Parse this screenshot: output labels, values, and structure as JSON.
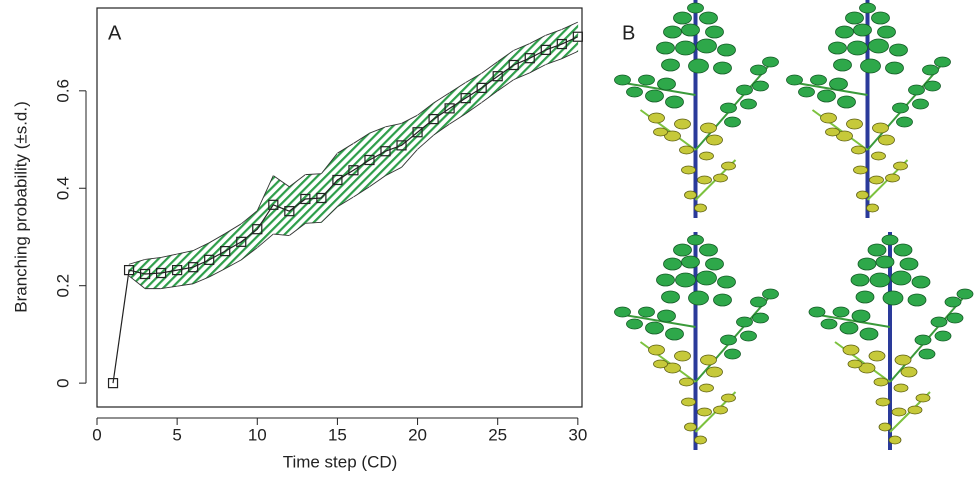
{
  "chart_data": {
    "type": "line",
    "panel_label": "A",
    "xlabel": "Time step (CD)",
    "ylabel": "Branching probability (±s.d.)",
    "x": [
      1,
      2,
      3,
      4,
      5,
      6,
      7,
      8,
      9,
      10,
      11,
      12,
      13,
      14,
      15,
      16,
      17,
      18,
      19,
      20,
      21,
      22,
      23,
      24,
      25,
      26,
      27,
      28,
      29,
      30
    ],
    "values": [
      0,
      0.232,
      0.224,
      0.226,
      0.232,
      0.238,
      0.253,
      0.271,
      0.29,
      0.316,
      0.366,
      0.353,
      0.378,
      0.38,
      0.417,
      0.437,
      0.458,
      0.476,
      0.488,
      0.515,
      0.542,
      0.564,
      0.585,
      0.606,
      0.63,
      0.653,
      0.667,
      0.684,
      0.696,
      0.711
    ],
    "sd": [
      null,
      0.012,
      0.03,
      0.032,
      0.033,
      0.034,
      0.035,
      0.036,
      0.037,
      0.038,
      0.06,
      0.05,
      0.05,
      0.05,
      0.055,
      0.055,
      0.055,
      0.05,
      0.045,
      0.035,
      0.033,
      0.032,
      0.032,
      0.03,
      0.03,
      0.03,
      0.03,
      0.03,
      0.03,
      0.03
    ],
    "color": "#222222",
    "band_color": "#2e9e4a",
    "xlim": [
      0,
      30.26
    ],
    "xticks": [
      0,
      5,
      10,
      15,
      20,
      25,
      30
    ],
    "ylim": [
      -0.049,
      0.77
    ],
    "yticks": [
      0,
      0.2,
      0.4,
      0.6
    ]
  },
  "panel_b": {
    "label": "B"
  }
}
